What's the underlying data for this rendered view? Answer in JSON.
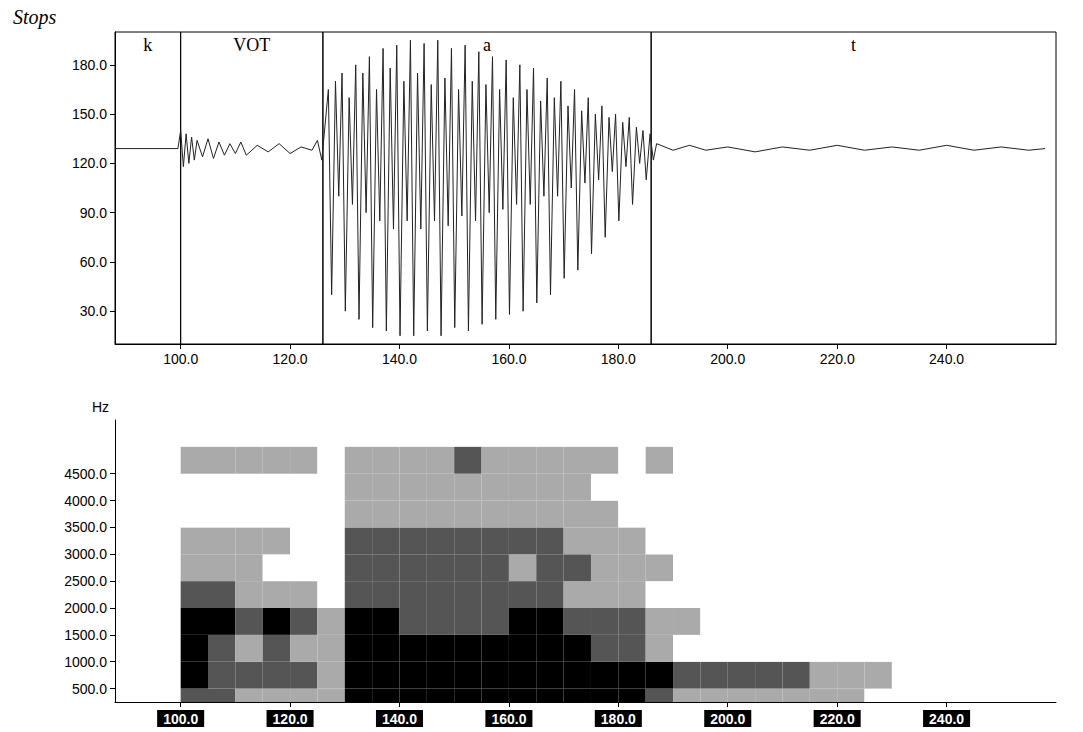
{
  "chart_data": [
    {
      "type": "line",
      "title": "Stops",
      "x": [
        88,
        99.5,
        100,
        100.5,
        101,
        101.5,
        102,
        102.5,
        103,
        104,
        105,
        106,
        107,
        108,
        109,
        110,
        111,
        112,
        114,
        116,
        118,
        120,
        122,
        124,
        125,
        125.8,
        127,
        127.6,
        128.3,
        128.9,
        129.5,
        130.1,
        130.8,
        131.4,
        132,
        132.6,
        133.3,
        133.9,
        134.5,
        135.1,
        135.8,
        136.4,
        137,
        137.6,
        138.3,
        138.9,
        139.5,
        140.1,
        140.8,
        141.4,
        142,
        142.6,
        143.3,
        143.9,
        144.5,
        145.1,
        145.8,
        146.4,
        147,
        147.6,
        148.3,
        148.9,
        149.5,
        150.1,
        150.8,
        151.4,
        152,
        152.6,
        153.3,
        153.9,
        154.5,
        155.1,
        155.8,
        156.4,
        157,
        157.6,
        158.3,
        158.9,
        159.5,
        160.1,
        160.8,
        161.4,
        162,
        162.6,
        163.3,
        163.9,
        164.5,
        165.1,
        165.8,
        166.4,
        167,
        167.6,
        168.3,
        168.9,
        169.5,
        170.1,
        170.8,
        171.4,
        172,
        172.6,
        173.3,
        173.9,
        174.5,
        175.1,
        175.8,
        176.4,
        177,
        177.6,
        178.3,
        178.9,
        179.5,
        180.1,
        180.8,
        181.4,
        182,
        182.6,
        183.3,
        183.9,
        184.5,
        185.1,
        185.8,
        186.4,
        187,
        190,
        193,
        196,
        200,
        205,
        210,
        215,
        220,
        225,
        230,
        235,
        240,
        245,
        250,
        255,
        258
      ],
      "values": [
        129,
        129,
        140,
        118,
        138,
        120,
        136,
        122,
        134,
        124,
        135,
        123,
        133,
        125,
        132,
        126,
        133,
        125,
        131,
        127,
        132,
        126,
        130,
        128,
        134,
        122,
        165,
        40,
        170,
        100,
        175,
        30,
        160,
        95,
        180,
        25,
        175,
        90,
        185,
        20,
        165,
        85,
        190,
        18,
        178,
        80,
        192,
        15,
        170,
        85,
        195,
        15,
        175,
        80,
        193,
        18,
        168,
        85,
        195,
        15,
        172,
        82,
        190,
        20,
        165,
        88,
        192,
        18,
        170,
        85,
        188,
        22,
        168,
        90,
        185,
        25,
        165,
        92,
        183,
        28,
        160,
        95,
        180,
        30,
        165,
        95,
        178,
        35,
        158,
        100,
        172,
        40,
        160,
        100,
        170,
        50,
        155,
        105,
        165,
        55,
        152,
        108,
        160,
        65,
        150,
        110,
        155,
        75,
        148,
        115,
        150,
        85,
        145,
        118,
        148,
        95,
        142,
        120,
        140,
        110,
        138,
        122,
        132,
        128,
        131,
        128,
        130,
        127,
        130,
        128,
        131,
        128,
        130,
        128,
        131,
        128,
        130,
        128,
        129
      ],
      "annotations": [
        {
          "label": "k",
          "start": 88,
          "end": 100
        },
        {
          "label": "VOT",
          "start": 100,
          "end": 126
        },
        {
          "label": "a",
          "start": 126,
          "end": 186
        },
        {
          "label": "t",
          "start": 186,
          "end": 260
        }
      ],
      "xlim": [
        88,
        260
      ],
      "xticks": [
        {
          "value": 100,
          "label": "100.0"
        },
        {
          "value": 120,
          "label": "120.0"
        },
        {
          "value": 140,
          "label": "140.0"
        },
        {
          "value": 160,
          "label": "160.0"
        },
        {
          "value": 180,
          "label": "180.0"
        },
        {
          "value": 200,
          "label": "200.0"
        },
        {
          "value": 220,
          "label": "220.0"
        },
        {
          "value": 240,
          "label": "240.0"
        }
      ],
      "ylim": [
        10,
        200
      ],
      "yticks": [
        {
          "value": 30,
          "label": "30.0"
        },
        {
          "value": 60,
          "label": "60.0"
        },
        {
          "value": 90,
          "label": "90.0"
        },
        {
          "value": 120,
          "label": "120.0"
        },
        {
          "value": 150,
          "label": "150.0"
        },
        {
          "value": 180,
          "label": "180.0"
        }
      ]
    },
    {
      "type": "heatmap",
      "y_label": "Hz",
      "times": [
        100,
        105,
        110,
        115,
        120,
        125,
        130,
        135,
        140,
        145,
        150,
        155,
        160,
        165,
        170,
        175,
        180,
        185,
        190,
        195,
        200,
        205,
        210,
        215,
        220,
        225,
        230,
        235
      ],
      "freqs": [
        0,
        500,
        1000,
        1500,
        2000,
        2500,
        3000,
        3500,
        4000,
        4500
      ],
      "cells": [
        [
          2,
          2,
          1,
          1,
          1,
          1,
          3,
          3,
          3,
          3,
          3,
          3,
          3,
          3,
          3,
          3,
          3,
          2,
          1,
          1,
          1,
          1,
          1,
          1,
          1,
          0,
          0,
          0
        ],
        [
          3,
          2,
          2,
          2,
          2,
          1,
          3,
          3,
          3,
          3,
          3,
          3,
          3,
          3,
          3,
          3,
          3,
          3,
          2,
          2,
          2,
          2,
          2,
          1,
          1,
          1,
          0,
          0
        ],
        [
          3,
          2,
          1,
          2,
          1,
          1,
          3,
          3,
          3,
          3,
          3,
          3,
          3,
          3,
          3,
          2,
          2,
          1,
          0,
          0,
          0,
          0,
          0,
          0,
          0,
          0,
          0,
          0
        ],
        [
          3,
          3,
          2,
          3,
          2,
          1,
          3,
          3,
          2,
          2,
          2,
          2,
          3,
          3,
          2,
          2,
          2,
          1,
          1,
          0,
          0,
          0,
          0,
          0,
          0,
          0,
          0,
          0
        ],
        [
          2,
          2,
          1,
          1,
          1,
          0,
          2,
          2,
          2,
          2,
          2,
          2,
          2,
          2,
          1,
          1,
          1,
          0,
          0,
          0,
          0,
          0,
          0,
          0,
          0,
          0,
          0,
          0
        ],
        [
          1,
          1,
          1,
          0,
          0,
          0,
          2,
          2,
          2,
          2,
          2,
          2,
          1,
          2,
          2,
          1,
          1,
          1,
          0,
          0,
          0,
          0,
          0,
          0,
          0,
          0,
          0,
          0
        ],
        [
          1,
          1,
          1,
          1,
          0,
          0,
          2,
          2,
          2,
          2,
          2,
          2,
          2,
          2,
          1,
          1,
          1,
          0,
          0,
          0,
          0,
          0,
          0,
          0,
          0,
          0,
          0,
          0
        ],
        [
          0,
          0,
          0,
          0,
          0,
          0,
          1,
          1,
          1,
          1,
          1,
          1,
          1,
          1,
          1,
          1,
          0,
          0,
          0,
          0,
          0,
          0,
          0,
          0,
          0,
          0,
          0,
          0
        ],
        [
          0,
          0,
          0,
          0,
          0,
          0,
          1,
          1,
          1,
          1,
          1,
          1,
          1,
          1,
          1,
          0,
          0,
          0,
          0,
          0,
          0,
          0,
          0,
          0,
          0,
          0,
          0,
          0
        ],
        [
          1,
          1,
          1,
          1,
          1,
          0,
          1,
          1,
          1,
          1,
          2,
          1,
          1,
          1,
          1,
          1,
          0,
          1,
          0,
          0,
          0,
          0,
          0,
          0,
          0,
          0,
          0,
          0
        ]
      ],
      "zlim": [
        0,
        3
      ],
      "xlim": [
        88,
        260
      ],
      "xticks": [
        {
          "value": 100,
          "label": "100.0"
        },
        {
          "value": 120,
          "label": "120.0"
        },
        {
          "value": 140,
          "label": "140.0"
        },
        {
          "value": 160,
          "label": "160.0"
        },
        {
          "value": 180,
          "label": "180.0"
        },
        {
          "value": 200,
          "label": "200.0"
        },
        {
          "value": 220,
          "label": "220.0"
        },
        {
          "value": 240,
          "label": "240.0"
        }
      ],
      "ylim": [
        250,
        5500
      ],
      "yticks": [
        {
          "value": 500,
          "label": "500.0"
        },
        {
          "value": 1000,
          "label": "1000.0"
        },
        {
          "value": 1500,
          "label": "1500.0"
        },
        {
          "value": 2000,
          "label": "2000.0"
        },
        {
          "value": 2500,
          "label": "2500.0"
        },
        {
          "value": 3000,
          "label": "3000.0"
        },
        {
          "value": 3500,
          "label": "3500.0"
        },
        {
          "value": 4000,
          "label": "4000.0"
        },
        {
          "value": 4500,
          "label": "4500.0"
        }
      ]
    }
  ]
}
